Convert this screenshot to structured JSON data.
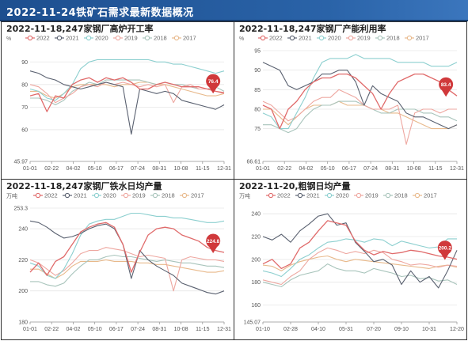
{
  "header": {
    "title": "2022-11-24铁矿石需求最新数据概况"
  },
  "colors": {
    "2022": "#e06a6a",
    "2021": "#5a6170",
    "2020": "#8ccfcf",
    "2019": "#eea7a0",
    "2018": "#a8c4bb",
    "2017": "#e8b98b"
  },
  "chart_data": [
    {
      "type": "line",
      "title": "2022-11-18,247家钢厂高炉开工率",
      "unit": "%",
      "ylim": [
        45.97,
        95
      ],
      "yticks": [
        45.97,
        60,
        70,
        80,
        90
      ],
      "xticks": [
        "01-01",
        "02-22",
        "04-02",
        "05-10",
        "06-17",
        "07-24",
        "08-31",
        "10-08",
        "11-15",
        "12-31"
      ],
      "callout": "76.4",
      "series": [
        {
          "name": "2022",
          "values": [
            75,
            76,
            68,
            75,
            74,
            80,
            82,
            83,
            81,
            83,
            82,
            83,
            81,
            78,
            78,
            80,
            81,
            80,
            79,
            79,
            79,
            78,
            77,
            76.4
          ]
        },
        {
          "name": "2021",
          "values": [
            86,
            85,
            83,
            82,
            80,
            79,
            78,
            79,
            80,
            81,
            80,
            79,
            58,
            78,
            77,
            76,
            77,
            76,
            73,
            72,
            71,
            70,
            69,
            71
          ]
        },
        {
          "name": "2020",
          "values": [
            78,
            77,
            74,
            73,
            76,
            80,
            87,
            90,
            91,
            91,
            91,
            91,
            91,
            91,
            91,
            90,
            90,
            89,
            89,
            88,
            87,
            86,
            85,
            86
          ]
        },
        {
          "name": "2019",
          "values": [
            80,
            79,
            76,
            72,
            74,
            76,
            79,
            80,
            79,
            81,
            80,
            81,
            80,
            79,
            80,
            79,
            80,
            72,
            79,
            80,
            78,
            78,
            77,
            76
          ]
        },
        {
          "name": "2018",
          "values": [
            74,
            74,
            73,
            71,
            73,
            77,
            79,
            81,
            80,
            82,
            82,
            82,
            82,
            82,
            81,
            80,
            81,
            80,
            80,
            79,
            78,
            78,
            79,
            77
          ]
        },
        {
          "name": "2017",
          "values": [
            77,
            77,
            75,
            74,
            76,
            79,
            80,
            80,
            80,
            80,
            79,
            80,
            80,
            81,
            81,
            80,
            80,
            79,
            78,
            77,
            76,
            75,
            75,
            76
          ]
        }
      ]
    },
    {
      "type": "line",
      "title": "2022-11-18,247家钢厂产能利用率",
      "unit": "%",
      "ylim": [
        66.61,
        95
      ],
      "yticks": [
        66.61,
        75,
        80,
        85,
        90,
        95
      ],
      "xticks": [
        "01-01",
        "02-22",
        "04-02",
        "05-10",
        "06-17",
        "07-24",
        "08-31",
        "10-08",
        "11-15",
        "12-31"
      ],
      "callout": "83.4",
      "series": [
        {
          "name": "2022",
          "values": [
            81,
            80,
            75,
            80,
            82,
            85,
            87,
            88,
            88,
            89,
            89,
            88,
            86,
            84,
            80,
            84,
            87,
            88,
            89,
            89,
            88,
            87,
            85,
            83.4
          ]
        },
        {
          "name": "2021",
          "values": [
            92,
            91,
            90,
            86,
            85,
            86,
            87,
            89,
            89,
            90,
            90,
            87,
            81,
            86,
            84,
            83,
            82,
            79,
            78,
            78,
            77,
            76,
            75,
            76
          ]
        },
        {
          "name": "2020",
          "values": [
            79,
            78,
            75,
            75,
            79,
            83,
            88,
            92,
            93,
            93,
            93,
            94,
            93,
            93,
            93,
            93,
            92,
            92,
            92,
            92,
            91,
            91,
            91,
            92
          ]
        },
        {
          "name": "2019",
          "values": [
            82,
            81,
            79,
            77,
            78,
            80,
            82,
            83,
            83,
            85,
            84,
            83,
            81,
            80,
            80,
            80,
            81,
            71,
            79,
            80,
            80,
            79,
            80,
            80
          ]
        },
        {
          "name": "2018",
          "values": [
            76,
            76,
            75,
            74,
            75,
            78,
            80,
            81,
            81,
            82,
            82,
            82,
            81,
            80,
            79,
            79,
            80,
            80,
            80,
            79,
            79,
            78,
            78,
            77
          ]
        },
        {
          "name": "2017",
          "values": [
            80,
            80,
            78,
            76,
            78,
            80,
            81,
            81,
            81,
            82,
            81,
            81,
            81,
            80,
            80,
            79,
            79,
            78,
            77,
            76,
            75,
            75,
            75,
            76
          ]
        }
      ]
    },
    {
      "type": "line",
      "title": "2022-11-18,247家钢厂铁水日均产量",
      "unit": "万吨",
      "ylim": [
        180,
        253.3
      ],
      "yticks": [
        180,
        200,
        220,
        240,
        253.3
      ],
      "xticks": [
        "01-01",
        "02-22",
        "04-02",
        "05-10",
        "06-17",
        "07-24",
        "08-31",
        "10-08",
        "11-15",
        "12-31"
      ],
      "callout": "224.8",
      "series": [
        {
          "name": "2022",
          "values": [
            212,
            218,
            210,
            219,
            222,
            230,
            238,
            241,
            243,
            244,
            241,
            230,
            212,
            225,
            236,
            240,
            241,
            240,
            236,
            234,
            232,
            228,
            226,
            224.8
          ]
        },
        {
          "name": "2021",
          "values": [
            245,
            244,
            241,
            237,
            234,
            235,
            237,
            240,
            242,
            243,
            240,
            230,
            208,
            226,
            220,
            216,
            213,
            210,
            205,
            203,
            201,
            199,
            198,
            200
          ]
        },
        {
          "name": "2020",
          "values": [
            218,
            216,
            210,
            208,
            214,
            224,
            236,
            243,
            245,
            246,
            246,
            248,
            250,
            250,
            249,
            248,
            248,
            247,
            247,
            246,
            245,
            244,
            244,
            245
          ]
        },
        {
          "name": "2019",
          "values": [
            220,
            218,
            214,
            210,
            213,
            218,
            224,
            226,
            226,
            228,
            227,
            226,
            224,
            222,
            223,
            222,
            221,
            200,
            220,
            222,
            221,
            220,
            220,
            219
          ]
        },
        {
          "name": "2018",
          "values": [
            206,
            206,
            204,
            203,
            205,
            211,
            216,
            220,
            220,
            222,
            223,
            222,
            222,
            221,
            220,
            219,
            220,
            219,
            218,
            218,
            217,
            216,
            216,
            215
          ]
        },
        {
          "name": "2017",
          "values": [
            214,
            214,
            211,
            208,
            211,
            216,
            219,
            219,
            219,
            220,
            219,
            219,
            219,
            218,
            218,
            217,
            217,
            216,
            215,
            214,
            213,
            212,
            212,
            213
          ]
        }
      ]
    },
    {
      "type": "line",
      "title": "2022-11-20,粗钢日均产量",
      "unit": "万吨",
      "ylim": [
        145.07,
        245
      ],
      "yticks": [
        145.07,
        160,
        180,
        200,
        220,
        240
      ],
      "xticks": [
        "01-10",
        "02-28",
        "04-10",
        "05-31",
        "07-20",
        "09-10",
        "10-31",
        "12-20"
      ],
      "callout": "200.2",
      "series": [
        {
          "name": "2022",
          "values": [
            196,
            200,
            192,
            196,
            210,
            215,
            225,
            234,
            232,
            230,
            216,
            208,
            204,
            207,
            205,
            206,
            208,
            207,
            205,
            203,
            202,
            200.2
          ]
        },
        {
          "name": "2021",
          "values": [
            220,
            217,
            222,
            215,
            225,
            231,
            238,
            240,
            230,
            232,
            215,
            207,
            198,
            200,
            195,
            178,
            190,
            180,
            185,
            175,
            190,
            208
          ]
        },
        {
          "name": "2020",
          "values": [
            190,
            188,
            185,
            192,
            200,
            204,
            210,
            215,
            216,
            218,
            217,
            215,
            218,
            217,
            212,
            216,
            214,
            212,
            210,
            211,
            218,
            218
          ]
        },
        {
          "name": "2019",
          "values": [
            182,
            180,
            178,
            185,
            190,
            200,
            206,
            210,
            208,
            205,
            207,
            205,
            208,
            206,
            200,
            198,
            195,
            196,
            195,
            193,
            195,
            194
          ]
        },
        {
          "name": "2018",
          "values": [
            180,
            178,
            176,
            182,
            186,
            188,
            190,
            196,
            192,
            190,
            190,
            188,
            192,
            190,
            188,
            185,
            186,
            183,
            184,
            181,
            182,
            178
          ]
        },
        {
          "name": "2017",
          "values": [
            195,
            194,
            190,
            195,
            198,
            200,
            202,
            203,
            200,
            198,
            200,
            199,
            198,
            197,
            196,
            195,
            194,
            193,
            192,
            194,
            195,
            193
          ]
        }
      ]
    }
  ]
}
